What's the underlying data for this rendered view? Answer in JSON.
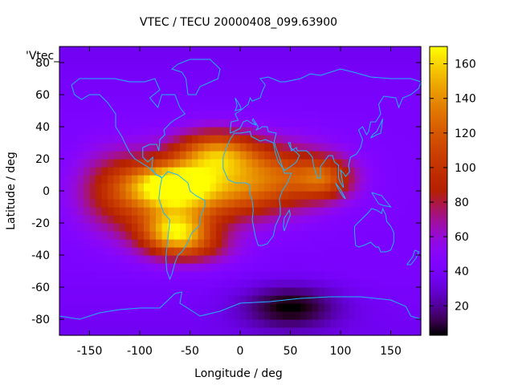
{
  "chart_data": {
    "type": "heatmap",
    "title": "VTEC / TECU 20000408_099.63900",
    "xlabel": "Longitude / deg",
    "ylabel": "Latitude / deg",
    "series_label": "'Vtec_",
    "xlim": [
      -180,
      180
    ],
    "ylim": [
      -90,
      90
    ],
    "x_ticks": [
      -150,
      -100,
      -50,
      0,
      50,
      100,
      150
    ],
    "y_ticks": [
      -80,
      -60,
      -40,
      -20,
      0,
      20,
      40,
      60,
      80
    ],
    "colorbar": {
      "range": [
        3,
        170
      ],
      "ticks": [
        20,
        40,
        60,
        80,
        100,
        120,
        140,
        160
      ],
      "palette": "black-blue-purple-red-orange-yellow"
    },
    "field": {
      "background_tecu": 42,
      "features": [
        {
          "name": "equatorial-anomaly-west-south-america",
          "lon": -70,
          "lat": 3,
          "peak_tecu": 140,
          "spread_lon": 28,
          "spread_lat": 10
        },
        {
          "name": "southern-crest-south-america",
          "lon": -65,
          "lat": -24,
          "peak_tecu": 140,
          "spread_lon": 25,
          "spread_lat": 9
        },
        {
          "name": "northern-crest-west-africa",
          "lon": -25,
          "lat": 24,
          "peak_tecu": 125,
          "spread_lon": 30,
          "spread_lat": 10
        },
        {
          "name": "equatorial-belt-atlantic",
          "lon": -25,
          "lat": 0,
          "peak_tecu": 115,
          "spread_lon": 45,
          "spread_lat": 14
        },
        {
          "name": "pacific-equatorial-tail",
          "lon": -120,
          "lat": 0,
          "peak_tecu": 95,
          "spread_lon": 30,
          "spread_lat": 18
        },
        {
          "name": "africa-arabia-belt",
          "lon": 40,
          "lat": 10,
          "peak_tecu": 100,
          "spread_lon": 40,
          "spread_lat": 14
        },
        {
          "name": "indian-ocean-extension",
          "lon": 85,
          "lat": 8,
          "peak_tecu": 95,
          "spread_lon": 20,
          "spread_lat": 9
        },
        {
          "name": "south-atlantic-hump",
          "lon": -50,
          "lat": -35,
          "peak_tecu": 85,
          "spread_lon": 30,
          "spread_lat": 8
        },
        {
          "name": "antarctic-trough",
          "lon": 50,
          "lat": -72,
          "peak_tecu": 5,
          "spread_lon": 35,
          "spread_lat": 10
        }
      ]
    }
  }
}
